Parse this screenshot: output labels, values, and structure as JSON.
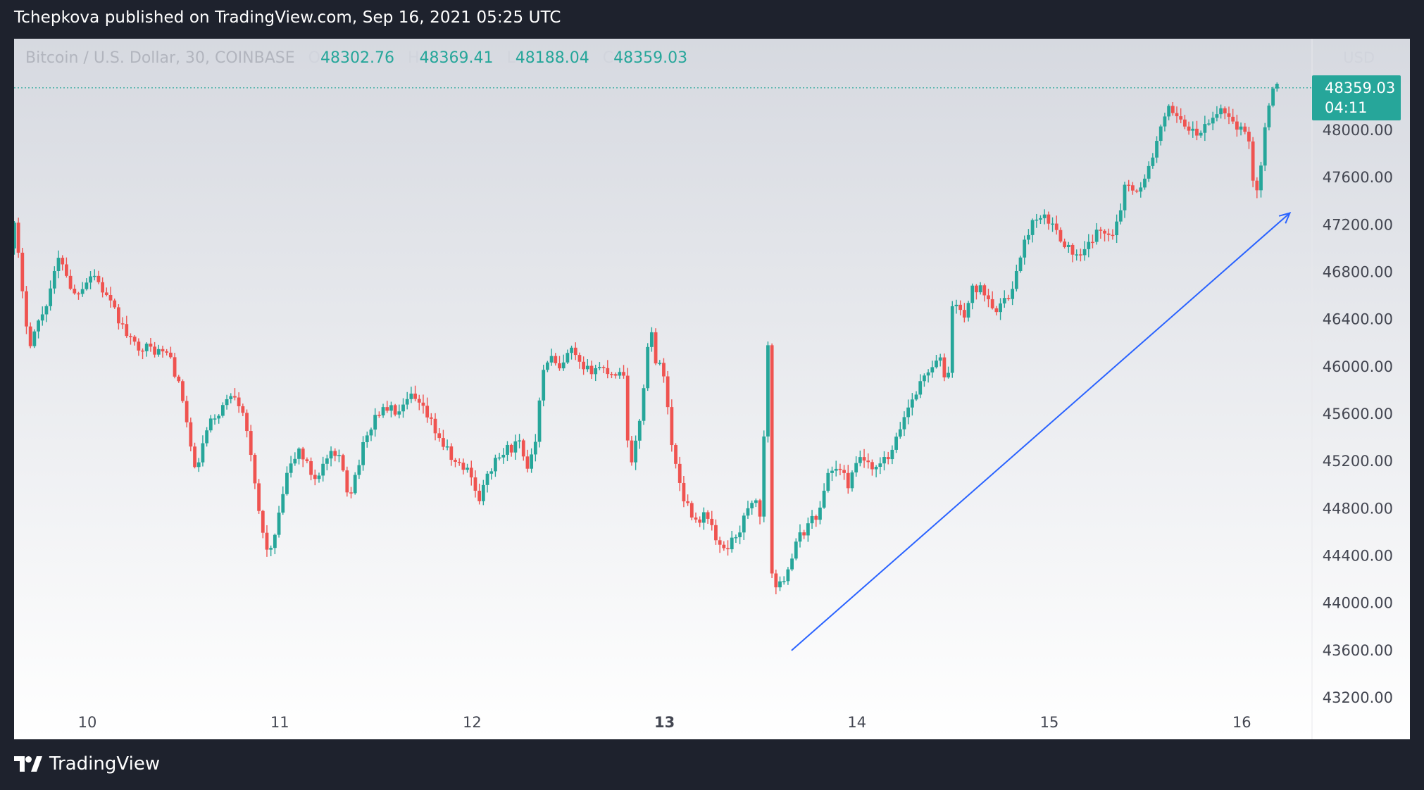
{
  "header": {
    "published_text": "Tchepkova published on TradingView.com, Sep 16, 2021 05:25 UTC"
  },
  "legend": {
    "symbol": "Bitcoin / U.S. Dollar, 30, COINBASE",
    "o_label": "O",
    "o_value": "48302.76",
    "h_label": "H",
    "h_value": "48369.41",
    "l_label": "L",
    "l_value": "48188.04",
    "c_label": "C",
    "c_value": "48359.03"
  },
  "price_axis": {
    "currency": "USD"
  },
  "price_tag": {
    "price": "48359.03",
    "countdown": "04:11"
  },
  "footer": {
    "brand": "TradingView"
  },
  "colors": {
    "up": "#26a69a",
    "down": "#ef5350",
    "trendline": "#2962ff",
    "background_top": "#d6d9e0",
    "background_bottom": "#ffffff",
    "frame": "#1e222d"
  },
  "chart_data": {
    "type": "candlestick",
    "title": "Bitcoin / U.S. Dollar, 30, COINBASE",
    "timeframe": "30",
    "exchange": "COINBASE",
    "x_ticks": [
      {
        "label": "10",
        "day": 10,
        "bold": false
      },
      {
        "label": "11",
        "day": 11,
        "bold": false
      },
      {
        "label": "12",
        "day": 12,
        "bold": false
      },
      {
        "label": "13",
        "day": 13,
        "bold": true
      },
      {
        "label": "14",
        "day": 14,
        "bold": false
      },
      {
        "label": "15",
        "day": 15,
        "bold": false
      },
      {
        "label": "16",
        "day": 16,
        "bold": false
      }
    ],
    "y_ticks": [
      "48000.00",
      "47600.00",
      "47200.00",
      "46800.00",
      "46400.00",
      "46000.00",
      "45600.00",
      "45200.00",
      "44800.00",
      "44400.00",
      "44000.00",
      "43600.00",
      "43200.00"
    ],
    "ylim": [
      43200,
      48700
    ],
    "xlim_days": [
      9.6,
      16.4
    ],
    "last_price": 48359.03,
    "trendline": {
      "start": {
        "day": 13.66,
        "price": 43600
      },
      "end": {
        "day": 16.25,
        "price": 47300
      }
    },
    "series": [
      {
        "day": 9.6,
        "price": 46900
      },
      {
        "day": 9.65,
        "price": 47250
      },
      {
        "day": 9.67,
        "price": 46750
      },
      {
        "day": 9.72,
        "price": 46200
      },
      {
        "day": 9.8,
        "price": 46500
      },
      {
        "day": 9.88,
        "price": 46950
      },
      {
        "day": 9.95,
        "price": 46600
      },
      {
        "day": 10.05,
        "price": 46800
      },
      {
        "day": 10.15,
        "price": 46500
      },
      {
        "day": 10.25,
        "price": 46200
      },
      {
        "day": 10.35,
        "price": 46150
      },
      {
        "day": 10.45,
        "price": 46100
      },
      {
        "day": 10.52,
        "price": 45700
      },
      {
        "day": 10.58,
        "price": 45100
      },
      {
        "day": 10.65,
        "price": 45500
      },
      {
        "day": 10.72,
        "price": 45650
      },
      {
        "day": 10.78,
        "price": 45800
      },
      {
        "day": 10.84,
        "price": 45600
      },
      {
        "day": 10.88,
        "price": 45100
      },
      {
        "day": 10.93,
        "price": 44600
      },
      {
        "day": 10.97,
        "price": 44400
      },
      {
        "day": 11.02,
        "price": 44750
      },
      {
        "day": 11.05,
        "price": 45050
      },
      {
        "day": 11.12,
        "price": 45300
      },
      {
        "day": 11.2,
        "price": 45050
      },
      {
        "day": 11.28,
        "price": 45250
      },
      {
        "day": 11.34,
        "price": 45200
      },
      {
        "day": 11.38,
        "price": 44900
      },
      {
        "day": 11.45,
        "price": 45300
      },
      {
        "day": 11.52,
        "price": 45600
      },
      {
        "day": 11.58,
        "price": 45650
      },
      {
        "day": 11.65,
        "price": 45600
      },
      {
        "day": 11.7,
        "price": 45750
      },
      {
        "day": 11.78,
        "price": 45600
      },
      {
        "day": 11.85,
        "price": 45400
      },
      {
        "day": 11.92,
        "price": 45200
      },
      {
        "day": 12.02,
        "price": 45100
      },
      {
        "day": 12.05,
        "price": 44850
      },
      {
        "day": 12.12,
        "price": 45150
      },
      {
        "day": 12.2,
        "price": 45300
      },
      {
        "day": 12.27,
        "price": 45350
      },
      {
        "day": 12.3,
        "price": 45100
      },
      {
        "day": 12.35,
        "price": 45400
      },
      {
        "day": 12.38,
        "price": 45900
      },
      {
        "day": 12.42,
        "price": 46100
      },
      {
        "day": 12.48,
        "price": 45950
      },
      {
        "day": 12.53,
        "price": 46150
      },
      {
        "day": 12.6,
        "price": 45950
      },
      {
        "day": 12.67,
        "price": 46000
      },
      {
        "day": 12.75,
        "price": 45950
      },
      {
        "day": 12.81,
        "price": 45950
      },
      {
        "day": 12.84,
        "price": 45100
      },
      {
        "day": 12.88,
        "price": 45400
      },
      {
        "day": 12.92,
        "price": 45950
      },
      {
        "day": 12.95,
        "price": 46400
      },
      {
        "day": 12.97,
        "price": 46050
      },
      {
        "day": 13.02,
        "price": 45950
      },
      {
        "day": 13.06,
        "price": 45300
      },
      {
        "day": 13.12,
        "price": 44900
      },
      {
        "day": 13.18,
        "price": 44700
      },
      {
        "day": 13.25,
        "price": 44750
      },
      {
        "day": 13.3,
        "price": 44450
      },
      {
        "day": 13.36,
        "price": 44500
      },
      {
        "day": 13.42,
        "price": 44650
      },
      {
        "day": 13.48,
        "price": 44900
      },
      {
        "day": 13.52,
        "price": 44750
      },
      {
        "day": 13.56,
        "price": 46200
      },
      {
        "day": 13.58,
        "price": 44200
      },
      {
        "day": 13.61,
        "price": 44100
      },
      {
        "day": 13.66,
        "price": 44300
      },
      {
        "day": 13.72,
        "price": 44550
      },
      {
        "day": 13.78,
        "price": 44700
      },
      {
        "day": 13.84,
        "price": 44800
      },
      {
        "day": 13.86,
        "price": 45100
      },
      {
        "day": 13.92,
        "price": 45150
      },
      {
        "day": 13.98,
        "price": 45000
      },
      {
        "day": 14.04,
        "price": 45250
      },
      {
        "day": 14.1,
        "price": 45100
      },
      {
        "day": 14.16,
        "price": 45200
      },
      {
        "day": 14.2,
        "price": 45250
      },
      {
        "day": 14.27,
        "price": 45600
      },
      {
        "day": 14.33,
        "price": 45800
      },
      {
        "day": 14.4,
        "price": 46000
      },
      {
        "day": 14.46,
        "price": 46050
      },
      {
        "day": 14.49,
        "price": 45800
      },
      {
        "day": 14.52,
        "price": 46600
      },
      {
        "day": 14.57,
        "price": 46400
      },
      {
        "day": 14.62,
        "price": 46650
      },
      {
        "day": 14.68,
        "price": 46650
      },
      {
        "day": 14.74,
        "price": 46500
      },
      {
        "day": 14.8,
        "price": 46550
      },
      {
        "day": 14.86,
        "price": 46850
      },
      {
        "day": 14.92,
        "price": 47200
      },
      {
        "day": 15.0,
        "price": 47250
      },
      {
        "day": 15.06,
        "price": 47150
      },
      {
        "day": 15.12,
        "price": 47000
      },
      {
        "day": 15.18,
        "price": 46900
      },
      {
        "day": 15.25,
        "price": 47100
      },
      {
        "day": 15.3,
        "price": 47150
      },
      {
        "day": 15.36,
        "price": 47150
      },
      {
        "day": 15.42,
        "price": 47550
      },
      {
        "day": 15.5,
        "price": 47500
      },
      {
        "day": 15.55,
        "price": 47750
      },
      {
        "day": 15.6,
        "price": 48000
      },
      {
        "day": 15.65,
        "price": 48200
      },
      {
        "day": 15.7,
        "price": 48100
      },
      {
        "day": 15.78,
        "price": 47950
      },
      {
        "day": 15.85,
        "price": 48050
      },
      {
        "day": 15.92,
        "price": 48200
      },
      {
        "day": 15.96,
        "price": 48100
      },
      {
        "day": 16.02,
        "price": 48000
      },
      {
        "day": 16.06,
        "price": 47900
      },
      {
        "day": 16.09,
        "price": 47450
      },
      {
        "day": 16.12,
        "price": 47650
      },
      {
        "day": 16.15,
        "price": 48200
      },
      {
        "day": 16.18,
        "price": 48300
      },
      {
        "day": 16.2,
        "price": 48359
      }
    ]
  }
}
